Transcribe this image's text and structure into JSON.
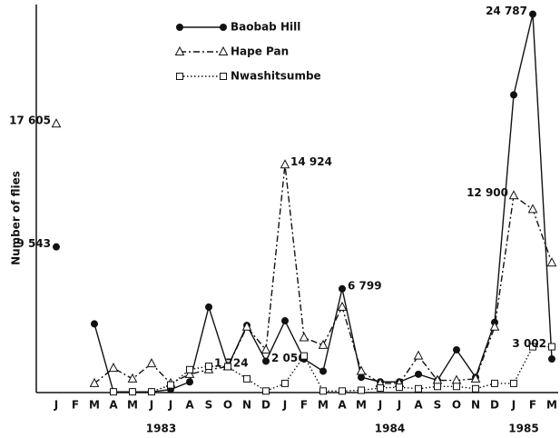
{
  "chart_data": {
    "type": "line",
    "y_label": "Number of flies",
    "categories": [
      "J",
      "F",
      "M",
      "A",
      "M",
      "J",
      "J",
      "A",
      "S",
      "O",
      "N",
      "D",
      "J",
      "F",
      "M",
      "A",
      "M",
      "J",
      "J",
      "A",
      "S",
      "O",
      "N",
      "D",
      "J",
      "F",
      "M"
    ],
    "year_labels": [
      "1983",
      "1984",
      "1985"
    ],
    "ylim": [
      0,
      25000
    ],
    "series": [
      {
        "name": "Baobab Hill",
        "color": "#111111",
        "marker": "circle",
        "line_style": "solid",
        "values": [
          9543,
          null,
          4500,
          50,
          50,
          50,
          200,
          700,
          5600,
          1700,
          4400,
          2056,
          4700,
          2200,
          1400,
          6799,
          1000,
          700,
          700,
          1200,
          800,
          2800,
          1000,
          4600,
          19500,
          24787,
          2200
        ],
        "value_labels": [
          "9 543",
          null,
          null,
          null,
          null,
          null,
          null,
          null,
          null,
          null,
          null,
          "2 056",
          null,
          null,
          null,
          "6 799",
          null,
          null,
          null,
          null,
          null,
          null,
          null,
          null,
          null,
          "24 787",
          null
        ]
      },
      {
        "name": "Hape Pan",
        "color": "#111111",
        "marker": "triangle",
        "line_style": "dashdot",
        "values": [
          17605,
          null,
          600,
          1600,
          900,
          1900,
          600,
          1200,
          1500,
          1700,
          4300,
          2800,
          14924,
          3600,
          3100,
          5600,
          1400,
          600,
          600,
          2400,
          800,
          800,
          900,
          4300,
          12900,
          12000,
          8500
        ],
        "value_labels": [
          "17 605",
          null,
          null,
          null,
          null,
          null,
          null,
          null,
          null,
          null,
          null,
          null,
          "14 924",
          null,
          null,
          null,
          null,
          null,
          null,
          null,
          null,
          null,
          null,
          null,
          "12 900",
          null,
          null
        ]
      },
      {
        "name": "Nwashitsumbe",
        "color": "#111111",
        "marker": "square",
        "line_style": "dotted",
        "values": [
          null,
          null,
          null,
          50,
          50,
          50,
          500,
          1500,
          1724,
          1700,
          900,
          100,
          600,
          2400,
          100,
          100,
          150,
          300,
          350,
          250,
          400,
          400,
          250,
          600,
          600,
          3000,
          3002
        ],
        "value_labels": [
          null,
          null,
          null,
          null,
          null,
          null,
          null,
          null,
          "1 724",
          null,
          null,
          null,
          null,
          null,
          null,
          null,
          null,
          null,
          null,
          null,
          null,
          null,
          null,
          null,
          null,
          null,
          "3 002"
        ]
      }
    ]
  }
}
